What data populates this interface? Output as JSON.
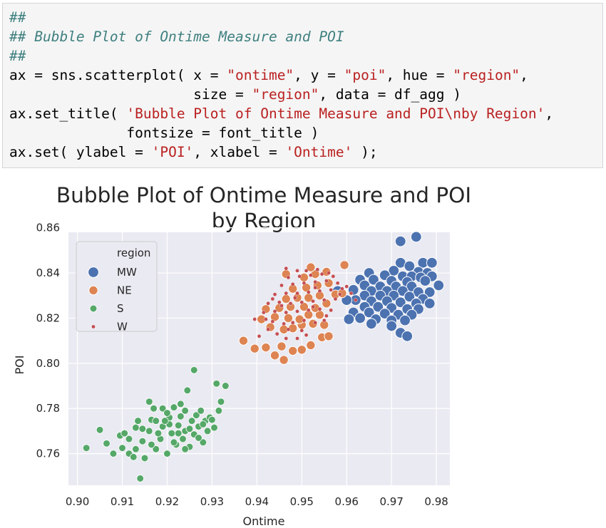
{
  "code": {
    "lines": [
      [
        {
          "t": "##",
          "c": "cm"
        }
      ],
      [
        {
          "t": "## Bubble Plot of Ontime Measure and POI",
          "c": "cm"
        }
      ],
      [
        {
          "t": "##",
          "c": "cm"
        }
      ],
      [
        {
          "t": "ax = sns.scatterplot( x = ",
          "c": ""
        },
        {
          "t": "\"ontime\"",
          "c": "st"
        },
        {
          "t": ", y = ",
          "c": ""
        },
        {
          "t": "\"poi\"",
          "c": "st"
        },
        {
          "t": ", hue = ",
          "c": ""
        },
        {
          "t": "\"region\"",
          "c": "st"
        },
        {
          "t": ",",
          "c": ""
        }
      ],
      [
        {
          "t": "                      size = ",
          "c": ""
        },
        {
          "t": "\"region\"",
          "c": "st"
        },
        {
          "t": ", data = df_agg )",
          "c": ""
        }
      ],
      [
        {
          "t": "ax.set_title( ",
          "c": ""
        },
        {
          "t": "'Bubble Plot of Ontime Measure and POI\\nby Region'",
          "c": "st"
        },
        {
          "t": ",",
          "c": ""
        }
      ],
      [
        {
          "t": "              fontsize = font_title )",
          "c": ""
        }
      ],
      [
        {
          "t": "ax.set( ylabel = ",
          "c": ""
        },
        {
          "t": "'POI'",
          "c": "st"
        },
        {
          "t": ", xlabel = ",
          "c": ""
        },
        {
          "t": "'Ontime'",
          "c": "st"
        },
        {
          "t": " );",
          "c": ""
        }
      ]
    ]
  },
  "chart_data": {
    "type": "scatter",
    "title": [
      "Bubble Plot of Ontime Measure and POI",
      "by Region"
    ],
    "xlabel": "Ontime",
    "ylabel": "POI",
    "xlim": [
      0.898,
      0.983
    ],
    "ylim": [
      0.746,
      0.858
    ],
    "xticks": [
      "0.90",
      "0.91",
      "0.92",
      "0.93",
      "0.94",
      "0.95",
      "0.96",
      "0.97",
      "0.98"
    ],
    "yticks": [
      "0.76",
      "0.78",
      "0.80",
      "0.82",
      "0.84",
      "0.86"
    ],
    "grid": true,
    "legend": {
      "title": "region",
      "placement": "top-left"
    },
    "series": [
      {
        "name": "MW",
        "color": "#4c72b0",
        "size": "large",
        "points": [
          [
            0.972,
            0.854
          ],
          [
            0.9755,
            0.856
          ],
          [
            0.972,
            0.8445
          ],
          [
            0.977,
            0.8445
          ],
          [
            0.979,
            0.8445
          ],
          [
            0.974,
            0.843
          ],
          [
            0.9705,
            0.841
          ],
          [
            0.976,
            0.8405
          ],
          [
            0.978,
            0.84
          ],
          [
            0.965,
            0.84
          ],
          [
            0.9685,
            0.839
          ],
          [
            0.9725,
            0.8385
          ],
          [
            0.9745,
            0.8385
          ],
          [
            0.9765,
            0.838
          ],
          [
            0.979,
            0.8385
          ],
          [
            0.963,
            0.837
          ],
          [
            0.966,
            0.837
          ],
          [
            0.97,
            0.8365
          ],
          [
            0.9735,
            0.836
          ],
          [
            0.9775,
            0.8365
          ],
          [
            0.9805,
            0.8345
          ],
          [
            0.964,
            0.8345
          ],
          [
            0.9675,
            0.834
          ],
          [
            0.971,
            0.834
          ],
          [
            0.9745,
            0.834
          ],
          [
            0.9615,
            0.8325
          ],
          [
            0.9655,
            0.832
          ],
          [
            0.969,
            0.832
          ],
          [
            0.9725,
            0.832
          ],
          [
            0.976,
            0.8315
          ],
          [
            0.9785,
            0.8315
          ],
          [
            0.964,
            0.83
          ],
          [
            0.9675,
            0.83
          ],
          [
            0.9705,
            0.83
          ],
          [
            0.974,
            0.8295
          ],
          [
            0.977,
            0.8285
          ],
          [
            0.962,
            0.828
          ],
          [
            0.9655,
            0.8275
          ],
          [
            0.969,
            0.8275
          ],
          [
            0.972,
            0.827
          ],
          [
            0.9755,
            0.8265
          ],
          [
            0.9785,
            0.8265
          ],
          [
            0.964,
            0.825
          ],
          [
            0.967,
            0.825
          ],
          [
            0.97,
            0.8245
          ],
          [
            0.9735,
            0.824
          ],
          [
            0.976,
            0.824
          ],
          [
            0.9615,
            0.8225
          ],
          [
            0.965,
            0.8225
          ],
          [
            0.9685,
            0.822
          ],
          [
            0.9715,
            0.8215
          ],
          [
            0.9745,
            0.8215
          ],
          [
            0.963,
            0.82
          ],
          [
            0.9665,
            0.8195
          ],
          [
            0.97,
            0.819
          ],
          [
            0.973,
            0.819
          ],
          [
            0.9605,
            0.8195
          ],
          [
            0.9655,
            0.8175
          ],
          [
            0.97,
            0.8165
          ],
          [
            0.972,
            0.8135
          ],
          [
            0.9735,
            0.812
          ],
          [
            0.96,
            0.828
          ],
          [
            0.958,
            0.832
          ]
        ]
      },
      {
        "name": "NE",
        "color": "#dd8452",
        "size": "medium",
        "points": [
          [
            0.937,
            0.81
          ],
          [
            0.9395,
            0.8065
          ],
          [
            0.942,
            0.807
          ],
          [
            0.944,
            0.8035
          ],
          [
            0.946,
            0.8015
          ],
          [
            0.9455,
            0.8075
          ],
          [
            0.948,
            0.8055
          ],
          [
            0.95,
            0.806
          ],
          [
            0.952,
            0.808
          ],
          [
            0.9545,
            0.8115
          ],
          [
            0.956,
            0.812
          ],
          [
            0.943,
            0.816
          ],
          [
            0.946,
            0.815
          ],
          [
            0.948,
            0.8155
          ],
          [
            0.95,
            0.817
          ],
          [
            0.9525,
            0.8175
          ],
          [
            0.955,
            0.817
          ],
          [
            0.941,
            0.8195
          ],
          [
            0.944,
            0.8205
          ],
          [
            0.947,
            0.82
          ],
          [
            0.9495,
            0.8195
          ],
          [
            0.9515,
            0.8215
          ],
          [
            0.954,
            0.8215
          ],
          [
            0.942,
            0.824
          ],
          [
            0.945,
            0.8245
          ],
          [
            0.9475,
            0.825
          ],
          [
            0.9505,
            0.825
          ],
          [
            0.953,
            0.8245
          ],
          [
            0.9555,
            0.8265
          ],
          [
            0.9465,
            0.8285
          ],
          [
            0.949,
            0.829
          ],
          [
            0.9515,
            0.829
          ],
          [
            0.954,
            0.83
          ],
          [
            0.9575,
            0.8305
          ],
          [
            0.948,
            0.833
          ],
          [
            0.951,
            0.8335
          ],
          [
            0.9535,
            0.8345
          ],
          [
            0.956,
            0.8355
          ],
          [
            0.9505,
            0.838
          ],
          [
            0.953,
            0.8395
          ],
          [
            0.9555,
            0.8405
          ],
          [
            0.952,
            0.8425
          ],
          [
            0.9595,
            0.8435
          ],
          [
            0.959,
            0.831
          ],
          [
            0.9465,
            0.8395
          ]
        ]
      },
      {
        "name": "S",
        "color": "#55a868",
        "size": "small",
        "points": [
          [
            0.902,
            0.7625
          ],
          [
            0.905,
            0.7705
          ],
          [
            0.9065,
            0.7645
          ],
          [
            0.908,
            0.76
          ],
          [
            0.9095,
            0.768
          ],
          [
            0.91,
            0.7625
          ],
          [
            0.9115,
            0.76
          ],
          [
            0.9115,
            0.7665
          ],
          [
            0.913,
            0.762
          ],
          [
            0.913,
            0.7715
          ],
          [
            0.9135,
            0.7745
          ],
          [
            0.9145,
            0.7655
          ],
          [
            0.915,
            0.758
          ],
          [
            0.916,
            0.77
          ],
          [
            0.9165,
            0.775
          ],
          [
            0.9175,
            0.762
          ],
          [
            0.917,
            0.78
          ],
          [
            0.9185,
            0.7665
          ],
          [
            0.919,
            0.772
          ],
          [
            0.92,
            0.76
          ],
          [
            0.9205,
            0.776
          ],
          [
            0.921,
            0.769
          ],
          [
            0.9215,
            0.7805
          ],
          [
            0.922,
            0.764
          ],
          [
            0.9225,
            0.7725
          ],
          [
            0.923,
            0.7765
          ],
          [
            0.9235,
            0.7665
          ],
          [
            0.924,
            0.77
          ],
          [
            0.9245,
            0.788
          ],
          [
            0.925,
            0.763
          ],
          [
            0.9255,
            0.7745
          ],
          [
            0.926,
            0.7685
          ],
          [
            0.9265,
            0.777
          ],
          [
            0.927,
            0.772
          ],
          [
            0.9275,
            0.779
          ],
          [
            0.928,
            0.765
          ],
          [
            0.9285,
            0.7745
          ],
          [
            0.929,
            0.77
          ],
          [
            0.9295,
            0.776
          ],
          [
            0.9305,
            0.7715
          ],
          [
            0.9315,
            0.779
          ],
          [
            0.932,
            0.783
          ],
          [
            0.933,
            0.79
          ],
          [
            0.931,
            0.791
          ],
          [
            0.926,
            0.797
          ],
          [
            0.914,
            0.749
          ],
          [
            0.916,
            0.783
          ],
          [
            0.919,
            0.78
          ],
          [
            0.92,
            0.778
          ],
          [
            0.9205,
            0.773
          ],
          [
            0.9225,
            0.769
          ],
          [
            0.924,
            0.779
          ],
          [
            0.918,
            0.769
          ],
          [
            0.9145,
            0.771
          ],
          [
            0.924,
            0.762
          ],
          [
            0.927,
            0.767
          ],
          [
            0.9165,
            0.764
          ],
          [
            0.9215,
            0.765
          ],
          [
            0.925,
            0.771
          ],
          [
            0.928,
            0.773
          ],
          [
            0.93,
            0.775
          ],
          [
            0.9195,
            0.7745
          ],
          [
            0.923,
            0.782
          ],
          [
            0.9175,
            0.7745
          ],
          [
            0.9105,
            0.769
          ],
          [
            0.9125,
            0.7585
          ]
        ]
      },
      {
        "name": "W",
        "color": "#c44e52",
        "size": "tiny",
        "points": [
          [
            0.9405,
            0.812
          ],
          [
            0.9425,
            0.815
          ],
          [
            0.9445,
            0.813
          ],
          [
            0.9465,
            0.811
          ],
          [
            0.949,
            0.811
          ],
          [
            0.951,
            0.8125
          ],
          [
            0.9435,
            0.8185
          ],
          [
            0.946,
            0.8175
          ],
          [
            0.948,
            0.818
          ],
          [
            0.9505,
            0.819
          ],
          [
            0.953,
            0.818
          ],
          [
            0.955,
            0.819
          ],
          [
            0.9415,
            0.8225
          ],
          [
            0.944,
            0.823
          ],
          [
            0.9465,
            0.8225
          ],
          [
            0.949,
            0.823
          ],
          [
            0.9515,
            0.8235
          ],
          [
            0.954,
            0.824
          ],
          [
            0.9565,
            0.8235
          ],
          [
            0.9425,
            0.8265
          ],
          [
            0.945,
            0.827
          ],
          [
            0.9475,
            0.8265
          ],
          [
            0.95,
            0.827
          ],
          [
            0.9525,
            0.8275
          ],
          [
            0.955,
            0.828
          ],
          [
            0.9575,
            0.8285
          ],
          [
            0.944,
            0.8305
          ],
          [
            0.9465,
            0.831
          ],
          [
            0.949,
            0.831
          ],
          [
            0.9515,
            0.8315
          ],
          [
            0.954,
            0.832
          ],
          [
            0.9565,
            0.8325
          ],
          [
            0.959,
            0.833
          ],
          [
            0.9455,
            0.8345
          ],
          [
            0.948,
            0.835
          ],
          [
            0.9505,
            0.8355
          ],
          [
            0.953,
            0.836
          ],
          [
            0.9555,
            0.8365
          ],
          [
            0.958,
            0.8355
          ],
          [
            0.947,
            0.838
          ],
          [
            0.9495,
            0.8385
          ],
          [
            0.952,
            0.839
          ],
          [
            0.9545,
            0.8395
          ],
          [
            0.957,
            0.8385
          ],
          [
            0.951,
            0.841
          ],
          [
            0.9535,
            0.8415
          ],
          [
            0.9465,
            0.842
          ],
          [
            0.96,
            0.834
          ],
          [
            0.961,
            0.831
          ],
          [
            0.9395,
            0.8195
          ],
          [
            0.9455,
            0.8255
          ],
          [
            0.9485,
            0.829
          ],
          [
            0.9525,
            0.825
          ],
          [
            0.9555,
            0.821
          ],
          [
            0.947,
            0.815
          ],
          [
            0.95,
            0.8145
          ],
          [
            0.9435,
            0.8285
          ],
          [
            0.9585,
            0.8305
          ],
          [
            0.962,
            0.828
          ],
          [
            0.953,
            0.8335
          ],
          [
            0.956,
            0.84
          ],
          [
            0.949,
            0.841
          ],
          [
            0.942,
            0.8195
          ]
        ]
      }
    ]
  }
}
